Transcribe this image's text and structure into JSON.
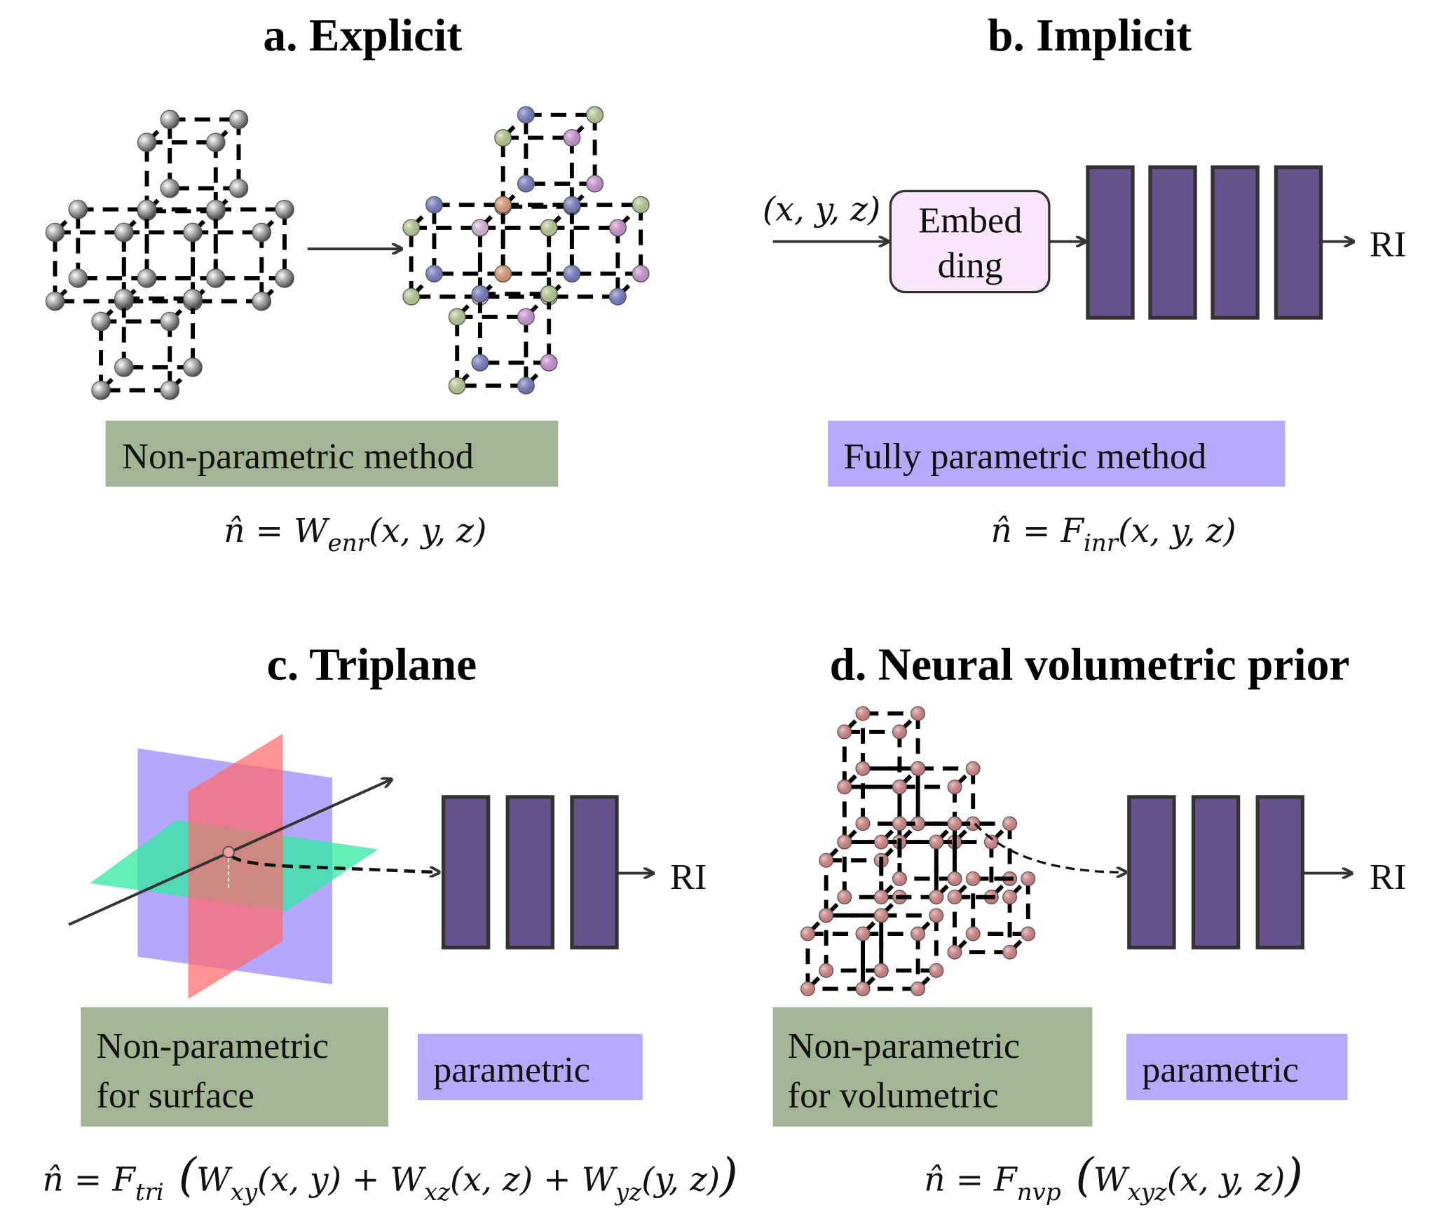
{
  "panels": {
    "a": {
      "title": "a. Explicit",
      "label": "Non-parametric method",
      "formula": {
        "lhs": "n̂ = ",
        "func": "W",
        "sub": "enr",
        "args": "(x, y, z)"
      }
    },
    "b": {
      "title": "b. Implicit",
      "input": "(x, y, z)",
      "embed_line1": "Embed",
      "embed_line2": "ding",
      "output": "RI",
      "label": "Fully parametric method",
      "formula": {
        "lhs": "n̂ = ",
        "func": "F",
        "sub": "inr",
        "args": "(x, y, z)"
      }
    },
    "c": {
      "title": "c. Triplane",
      "output": "RI",
      "label_np_line1": "Non-parametric",
      "label_np_line2": "for surface",
      "label_p": "parametric",
      "formula": {
        "lhs": "n̂ = ",
        "func": "F",
        "sub": "tri",
        "open": " (",
        "t1": "W",
        "s1": "xy",
        "a1": "(x, y) + ",
        "t2": "W",
        "s2": "xz",
        "a2": "(x, z) + ",
        "t3": "W",
        "s3": "yz",
        "a3": "(y, z)",
        "close": ")"
      }
    },
    "d": {
      "title": "d. Neural volumetric prior",
      "output": "RI",
      "label_np_line1": "Non-parametric",
      "label_np_line2": "for volumetric",
      "label_p": "parametric",
      "formula": {
        "lhs": "n̂ = ",
        "func": "F",
        "sub": "nvp",
        "open": " (",
        "t1": "W",
        "s1": "xyz",
        "a1": "(x, y, z)",
        "close": ")"
      }
    }
  },
  "colors": {
    "nonparametric_box": "#a2b595",
    "parametric_box": "#b8a8fb",
    "network_layer": "#67518c",
    "embedding_box": "#f9e6fb",
    "plane_xy": "#30e8a0",
    "plane_xz": "#a898fb",
    "plane_yz": "#ff6a6a",
    "grid_node_gray": "#9a9a9a",
    "grid_node_pink": "#e89090",
    "feature_palette": [
      "#e0a0e8",
      "#f0a880",
      "#c8e0a0",
      "#40e8f0",
      "#7c86d6",
      "#f0c8f0"
    ]
  }
}
